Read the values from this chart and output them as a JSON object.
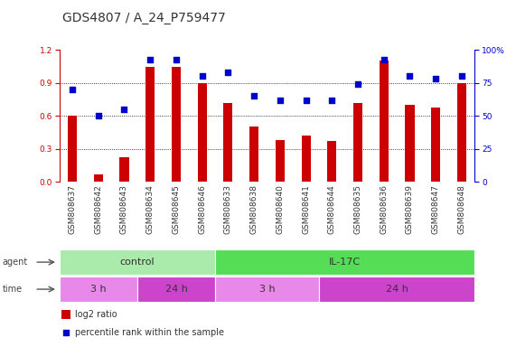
{
  "title": "GDS4807 / A_24_P759477",
  "samples": [
    "GSM808637",
    "GSM808642",
    "GSM808643",
    "GSM808634",
    "GSM808645",
    "GSM808646",
    "GSM808633",
    "GSM808638",
    "GSM808640",
    "GSM808641",
    "GSM808644",
    "GSM808635",
    "GSM808636",
    "GSM808639",
    "GSM808647",
    "GSM808648"
  ],
  "log2_ratio": [
    0.6,
    0.07,
    0.22,
    1.05,
    1.05,
    0.9,
    0.72,
    0.5,
    0.38,
    0.42,
    0.37,
    0.72,
    1.1,
    0.7,
    0.68,
    0.9
  ],
  "percentile": [
    70,
    50,
    55,
    93,
    93,
    80,
    83,
    65,
    62,
    62,
    62,
    74,
    93,
    80,
    78,
    80
  ],
  "bar_color": "#cc0000",
  "dot_color": "#0000cc",
  "ylim_left": [
    0,
    1.2
  ],
  "ylim_right": [
    0,
    100
  ],
  "yticks_left": [
    0,
    0.3,
    0.6,
    0.9,
    1.2
  ],
  "yticks_right": [
    0,
    25,
    50,
    75,
    100
  ],
  "agent_groups": [
    {
      "label": "control",
      "start": 0,
      "end": 6,
      "color": "#aaeaaa"
    },
    {
      "label": "IL-17C",
      "start": 6,
      "end": 16,
      "color": "#55dd55"
    }
  ],
  "time_groups": [
    {
      "label": "3 h",
      "start": 0,
      "end": 3,
      "color": "#e888e8"
    },
    {
      "label": "24 h",
      "start": 3,
      "end": 6,
      "color": "#cc44cc"
    },
    {
      "label": "3 h",
      "start": 6,
      "end": 10,
      "color": "#e888e8"
    },
    {
      "label": "24 h",
      "start": 10,
      "end": 16,
      "color": "#cc44cc"
    }
  ],
  "bar_color_red": "#cc0000",
  "dot_color_blue": "#0000cc",
  "left_axis_color": "#cc0000",
  "right_axis_color": "#0000cc",
  "background_color": "#ffffff",
  "title_fontsize": 10,
  "tick_fontsize": 6.5,
  "label_fontsize": 8,
  "legend_fontsize": 7,
  "bar_width": 0.35
}
